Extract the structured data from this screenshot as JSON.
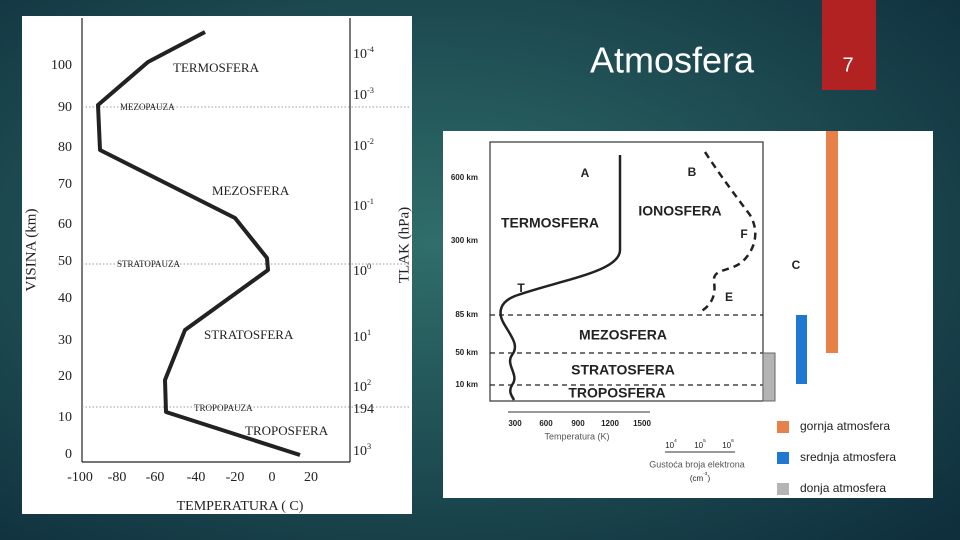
{
  "slide": {
    "title": "Atmosfera",
    "page_number": "7"
  },
  "left_figure": {
    "y_axis_label": "VISINA (km)",
    "x_axis_label": "TEMPERATURA (  C)",
    "right_axis_label": "TLAK (hPa)",
    "y_ticks": [
      "0",
      "10",
      "20",
      "30",
      "40",
      "50",
      "60",
      "70",
      "80",
      "90",
      "100"
    ],
    "x_ticks": [
      "-100",
      "-80",
      "-60",
      "-40",
      "-20",
      "0",
      "20"
    ],
    "pressure_ticks": [
      {
        "base": "10",
        "exp": "-4"
      },
      {
        "base": "10",
        "exp": "-3"
      },
      {
        "base": "10",
        "exp": "-2"
      },
      {
        "base": "10",
        "exp": "-1"
      },
      {
        "base": "10",
        "exp": "0"
      },
      {
        "base": "10",
        "exp": "1"
      },
      {
        "base": "10",
        "exp": "2"
      },
      {
        "base": "194"
      },
      {
        "base": "10",
        "exp": "3"
      }
    ],
    "layers": [
      "TERMOSFERA",
      "MEZOPAUZA",
      "MEZOSFERA",
      "STRATOPAUZA",
      "STRATOSFERA",
      "TROPOPAUZA",
      "TROPOSFERA"
    ]
  },
  "right_figure": {
    "altitude_labels": [
      "600 km",
      "300 km",
      "85 km",
      "50 km",
      "10 km"
    ],
    "curve_labels": [
      "A",
      "B",
      "T",
      "F",
      "E",
      "C"
    ],
    "layers": [
      "TERMOSFERA",
      "IONOSFERA",
      "MEZOSFERA",
      "STRATOSFERA",
      "TROPOSFERA"
    ],
    "temperature_ticks": [
      "300",
      "600",
      "900",
      "1200",
      "1500"
    ],
    "temperature_label": "Temperatura (K)",
    "density_ticks": [
      {
        "base": "10",
        "exp": "4"
      },
      {
        "base": "10",
        "exp": "5"
      },
      {
        "base": "10",
        "exp": "6"
      }
    ],
    "density_label": "Gustoća broja elektrona",
    "density_unit": {
      "base": "(cm",
      "exp": "-3",
      "end": ")"
    },
    "legend": [
      {
        "label": "gornja atmosfera",
        "color": "#e8804a"
      },
      {
        "label": "srednja atmosfera",
        "color": "#1f78d1"
      },
      {
        "label": "donja atmosfera",
        "color": "#b4b4b4"
      }
    ]
  }
}
